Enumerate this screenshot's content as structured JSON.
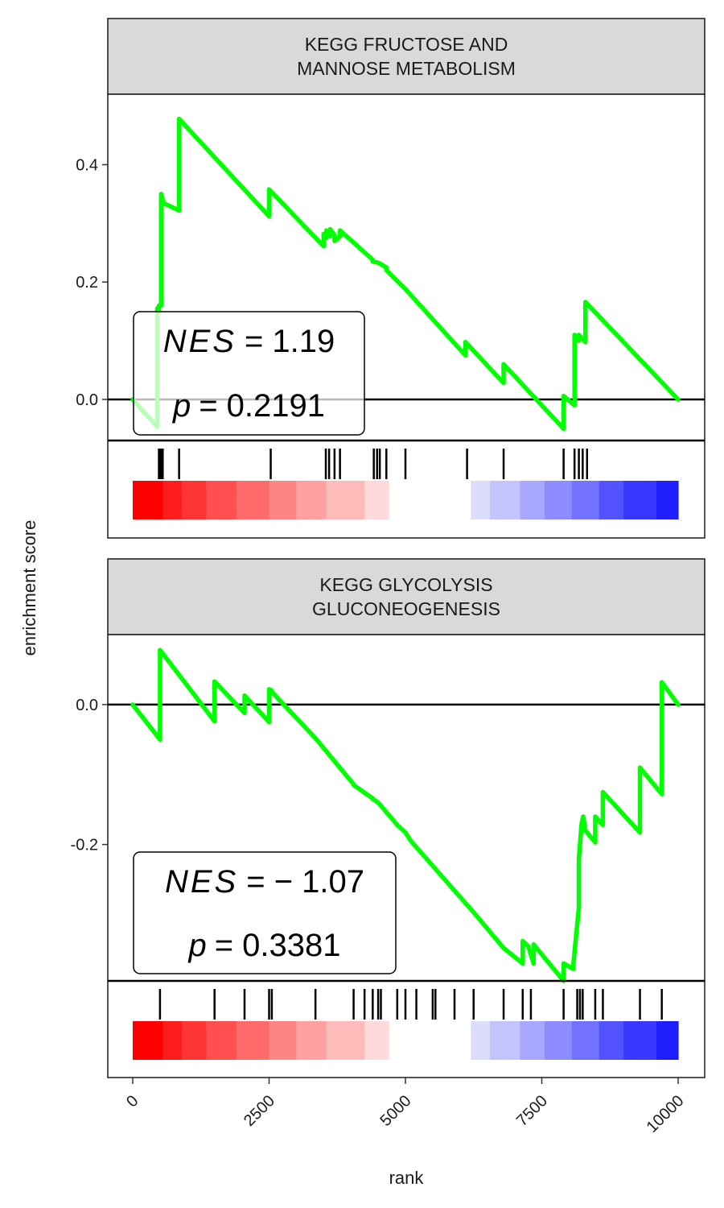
{
  "chart_data": {
    "type": "line",
    "ylabel": "enrichment score",
    "xlabel": "rank",
    "xlim": [
      0,
      10000
    ],
    "x_ticks": [
      0,
      2500,
      5000,
      7500,
      10000
    ],
    "x_tick_labels": [
      "0",
      "2500",
      "5000",
      "7500",
      "10000"
    ],
    "line_color": "#00ff00",
    "hit_tick_color": "#000000",
    "zero_line": true,
    "colorbar": {
      "colors": [
        "#ff0000",
        "#ff1c1c",
        "#ff3535",
        "#ff4f4f",
        "#ff6a6a",
        "#ff8585",
        "#ffa1a1",
        "#ffbaba",
        "#ffdada",
        "#ffffff",
        "#ffffff",
        "#dcdcff",
        "#c3c3ff",
        "#a7a7ff",
        "#8d8dff",
        "#7272ff",
        "#5252ff",
        "#3737ff",
        "#1e1eff",
        "#0000ff"
      ],
      "boundaries": [
        0,
        550,
        900,
        1350,
        1900,
        2500,
        3000,
        3550,
        4250,
        4700,
        5700,
        6200,
        6550,
        7100,
        7550,
        8050,
        8550,
        9000,
        9600,
        10000,
        10000
      ]
    },
    "panels": [
      {
        "title": "KEGG FRUCTOSE AND\nMANNOSE METABOLISM",
        "ylim": [
          -0.07,
          0.52
        ],
        "y_ticks": [
          0.0,
          0.2,
          0.4
        ],
        "y_tick_labels": [
          "0.0",
          "0.2",
          "0.4"
        ],
        "x": [
          0,
          450,
          450,
          480,
          480,
          520,
          520,
          550,
          550,
          850,
          850,
          2500,
          2500,
          3500,
          3500,
          3550,
          3550,
          3620,
          3620,
          3700,
          3700,
          3800,
          3800,
          4400,
          4400,
          4500,
          4500,
          4650,
          4650,
          5000,
          5000,
          6100,
          6100,
          6800,
          6800,
          7900,
          7900,
          8100,
          8100,
          8180,
          8180,
          8300,
          8300,
          10000
        ],
        "y": [
          0.0,
          -0.047,
          0.155,
          0.15,
          0.16,
          0.16,
          0.35,
          0.34,
          0.335,
          0.322,
          0.478,
          0.312,
          0.358,
          0.261,
          0.282,
          0.275,
          0.288,
          0.278,
          0.29,
          0.28,
          0.27,
          0.278,
          0.288,
          0.238,
          0.235,
          0.233,
          0.233,
          0.225,
          0.22,
          0.188,
          0.188,
          0.075,
          0.098,
          0.028,
          0.06,
          -0.05,
          0.006,
          -0.01,
          0.11,
          0.1,
          0.11,
          0.098,
          0.166,
          0.0
        ],
        "hits": [
          480,
          500,
          520,
          550,
          850,
          2530,
          3540,
          3600,
          3700,
          3800,
          4420,
          4480,
          4530,
          4650,
          5000,
          6130,
          6800,
          7900,
          8100,
          8180,
          8250,
          8330
        ],
        "nes_label": "NES",
        "nes_text": "= 1.19",
        "p_label": "p",
        "p_text": "= 0.2191"
      },
      {
        "title": "KEGG GLYCOLYSIS\nGLUCONEOGENESIS",
        "ylim": [
          -0.395,
          0.1
        ],
        "y_ticks": [
          0.0,
          -0.2
        ],
        "y_tick_labels": [
          "0.0",
          "-0.2"
        ],
        "x": [
          0,
          500,
          500,
          1500,
          1500,
          2050,
          2050,
          2500,
          2500,
          2550,
          2550,
          3350,
          3350,
          4050,
          4050,
          4250,
          4250,
          4400,
          4400,
          4500,
          4500,
          4850,
          4850,
          5000,
          5000,
          5100,
          5100,
          5450,
          5450,
          5550,
          5550,
          5900,
          5900,
          6250,
          6250,
          6800,
          6800,
          7150,
          7150,
          7250,
          7250,
          7350,
          7350,
          7900,
          7900,
          8080,
          8080,
          8180,
          8180,
          8200,
          8200,
          8230,
          8230,
          8260,
          8260,
          8300,
          8300,
          8480,
          8480,
          8620,
          8620,
          9300,
          9300,
          9700,
          9700,
          10000
        ],
        "y": [
          0.0,
          -0.05,
          0.078,
          -0.024,
          0.033,
          -0.012,
          0.013,
          -0.025,
          0.022,
          0.02,
          0.018,
          -0.048,
          -0.048,
          -0.114,
          -0.115,
          -0.126,
          -0.126,
          -0.134,
          -0.135,
          -0.14,
          -0.14,
          -0.172,
          -0.172,
          -0.183,
          -0.183,
          -0.195,
          -0.195,
          -0.226,
          -0.226,
          -0.235,
          -0.235,
          -0.266,
          -0.266,
          -0.297,
          -0.297,
          -0.348,
          -0.348,
          -0.37,
          -0.338,
          -0.345,
          -0.345,
          -0.37,
          -0.343,
          -0.395,
          -0.37,
          -0.378,
          -0.37,
          -0.29,
          -0.22,
          -0.2,
          -0.2,
          -0.17,
          -0.17,
          -0.16,
          -0.16,
          -0.18,
          -0.18,
          -0.197,
          -0.16,
          -0.172,
          -0.125,
          -0.183,
          -0.09,
          -0.128,
          0.032,
          0.0
        ],
        "hits": [
          500,
          1500,
          2050,
          2500,
          2550,
          3350,
          4050,
          4250,
          4400,
          4500,
          4550,
          4850,
          5000,
          5200,
          5500,
          5550,
          5900,
          6250,
          6800,
          7150,
          7300,
          7900,
          8150,
          8200,
          8250,
          8480,
          8620,
          9300,
          9700
        ],
        "nes_label": "NES",
        "nes_text": "= − 1.07",
        "p_label": "p",
        "p_text": "= 0.3381"
      }
    ]
  }
}
